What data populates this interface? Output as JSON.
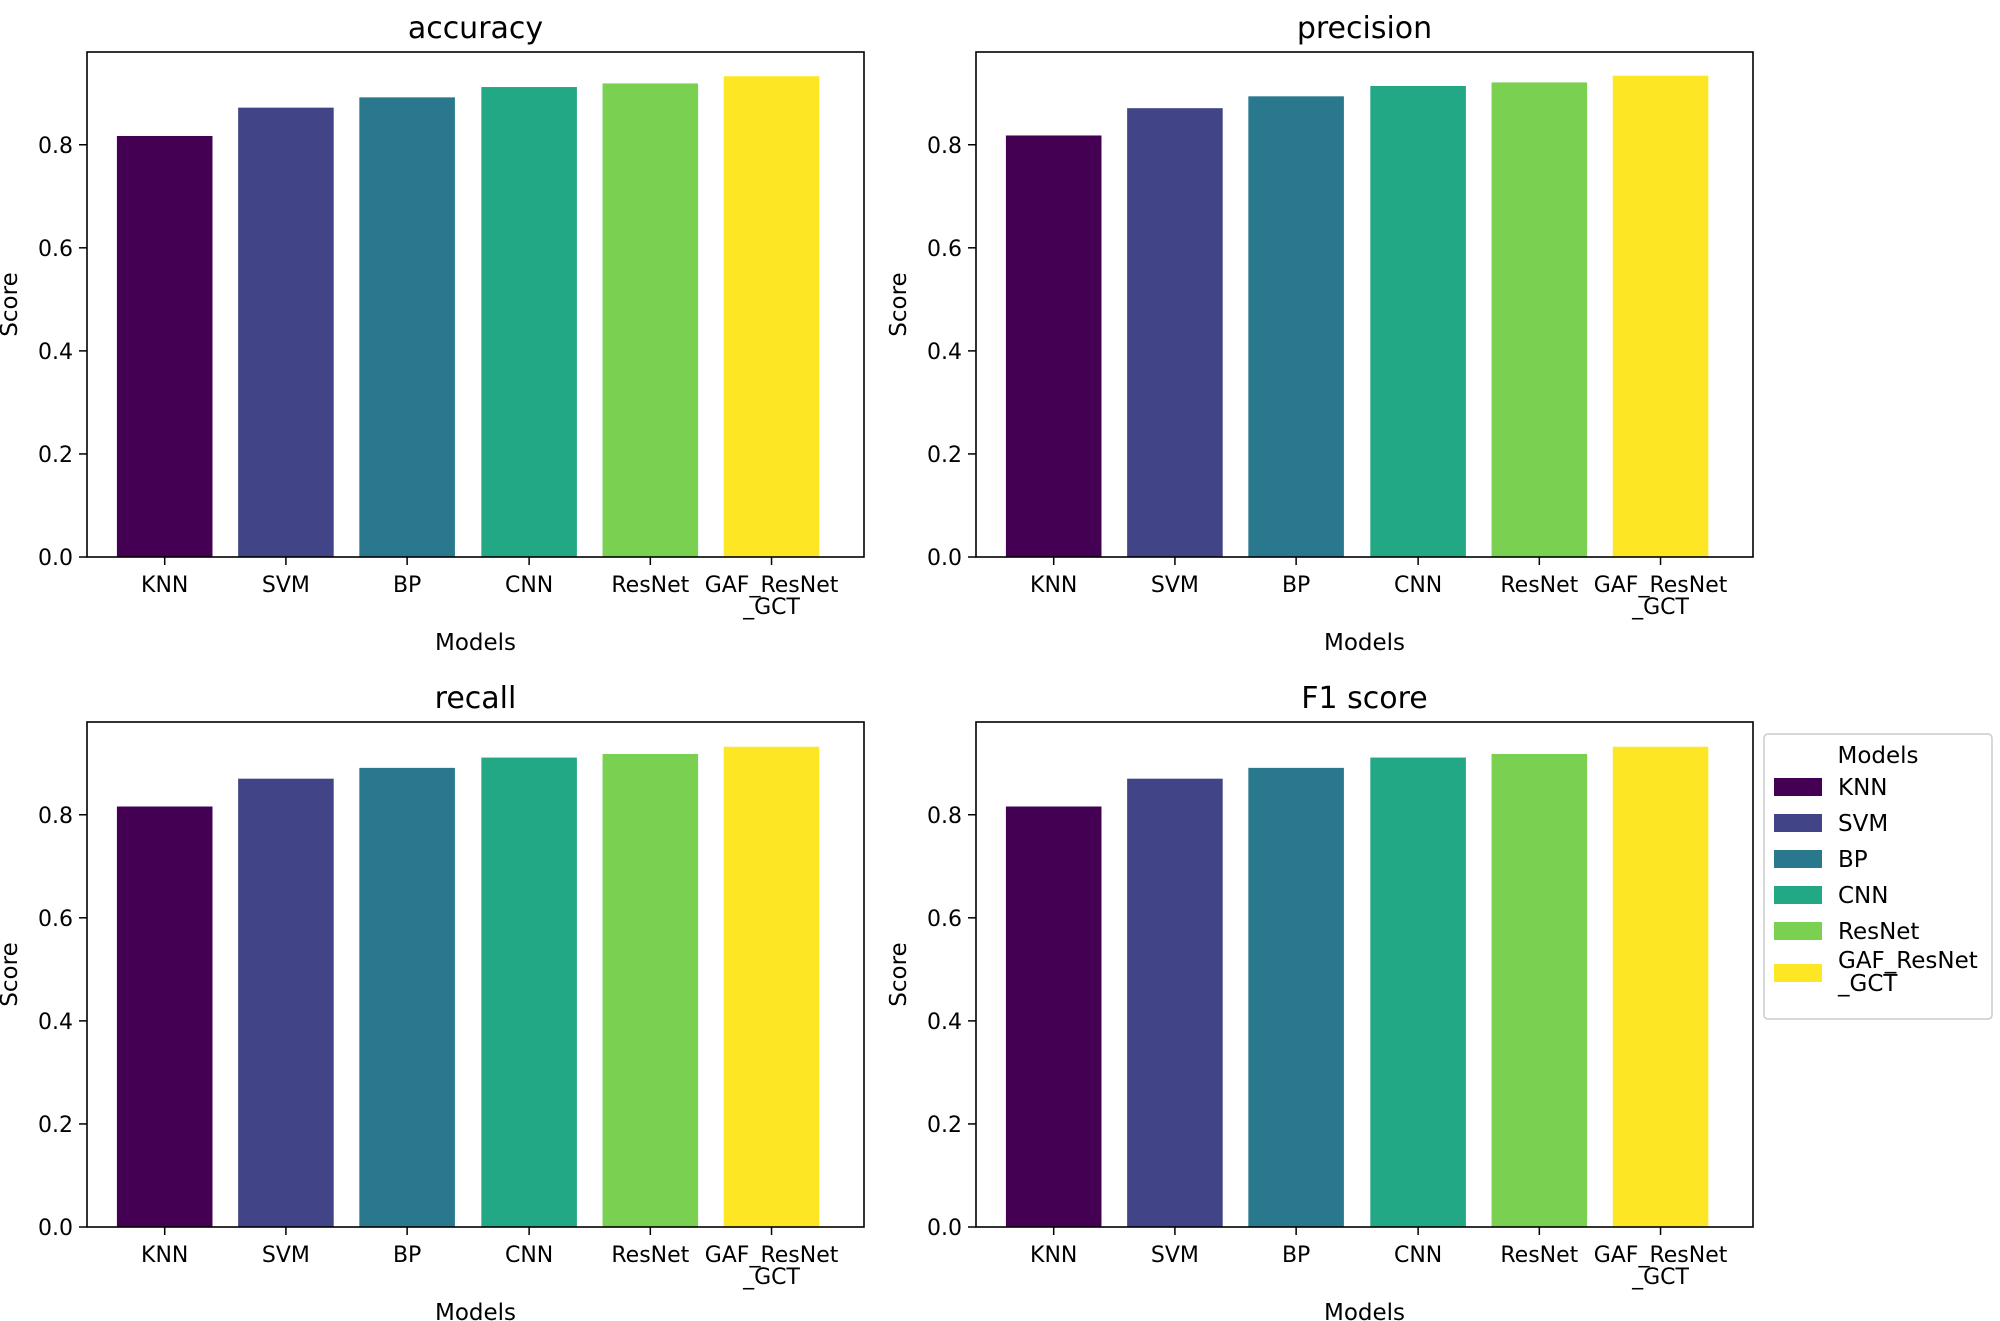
{
  "chart_data": [
    {
      "type": "bar",
      "title": "accuracy",
      "xlabel": "Models",
      "ylabel": "Score",
      "ylim": [
        0,
        0.98
      ],
      "yticks": [
        "0.0",
        "0.2",
        "0.4",
        "0.6",
        "0.8"
      ],
      "categories": [
        "KNN",
        "SVM",
        "BP",
        "CNN",
        "ResNet",
        "GAF_ResNet\n_GCT"
      ],
      "values": [
        0.817,
        0.872,
        0.892,
        0.912,
        0.919,
        0.933
      ]
    },
    {
      "type": "bar",
      "title": "precision",
      "xlabel": "Models",
      "ylabel": "Score",
      "ylim": [
        0,
        0.98
      ],
      "yticks": [
        "0.0",
        "0.2",
        "0.4",
        "0.6",
        "0.8"
      ],
      "categories": [
        "KNN",
        "SVM",
        "BP",
        "CNN",
        "ResNet",
        "GAF_ResNet\n_GCT"
      ],
      "values": [
        0.818,
        0.871,
        0.894,
        0.914,
        0.921,
        0.934
      ]
    },
    {
      "type": "bar",
      "title": "recall",
      "xlabel": "Models",
      "ylabel": "Score",
      "ylim": [
        0,
        0.98
      ],
      "yticks": [
        "0.0",
        "0.2",
        "0.4",
        "0.6",
        "0.8"
      ],
      "categories": [
        "KNN",
        "SVM",
        "BP",
        "CNN",
        "ResNet",
        "GAF_ResNet\n_GCT"
      ],
      "values": [
        0.816,
        0.87,
        0.891,
        0.911,
        0.918,
        0.932
      ]
    },
    {
      "type": "bar",
      "title": "F1 score",
      "xlabel": "Models",
      "ylabel": "Score",
      "ylim": [
        0,
        0.98
      ],
      "yticks": [
        "0.0",
        "0.2",
        "0.4",
        "0.6",
        "0.8"
      ],
      "categories": [
        "KNN",
        "SVM",
        "BP",
        "CNN",
        "ResNet",
        "GAF_ResNet\n_GCT"
      ],
      "values": [
        0.816,
        0.87,
        0.891,
        0.911,
        0.918,
        0.932
      ]
    }
  ],
  "colors": [
    "#440154",
    "#414487",
    "#2a788e",
    "#22a884",
    "#7ad151",
    "#fde725"
  ],
  "legend": {
    "title": "Models",
    "placement": "right",
    "entries": [
      "KNN",
      "SVM",
      "BP",
      "CNN",
      "ResNet",
      "GAF_ResNet\n_GCT"
    ]
  }
}
